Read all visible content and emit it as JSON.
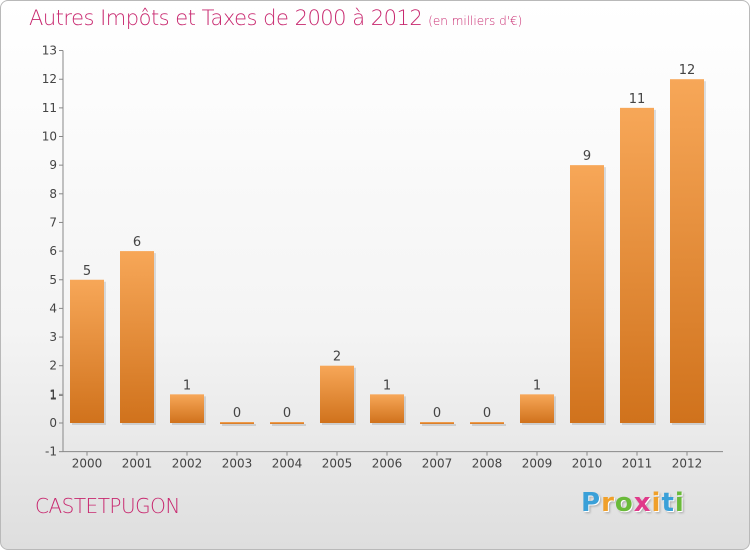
{
  "title": "Autres Impôts et Taxes de 2000 à 2012",
  "title_unit": "(en milliers d'€)",
  "place": "CASTETPUGON",
  "logo": {
    "letters": [
      "P",
      "r",
      "o",
      "x",
      "i",
      "t",
      "i"
    ],
    "colors": [
      "#3aa0d8",
      "#f0a02a",
      "#6aba3a",
      "#e03a8a",
      "#f0a02a",
      "#3aa0d8",
      "#6aba3a"
    ]
  },
  "colors": {
    "accent": "#c8286f",
    "bar_light": "#f7a758",
    "bar_dark": "#d0721c",
    "axis": "#888888"
  },
  "chart_data": {
    "type": "bar",
    "categories": [
      "2000",
      "2001",
      "2002",
      "2003",
      "2004",
      "2005",
      "2006",
      "2007",
      "2008",
      "2009",
      "2010",
      "2011",
      "2012"
    ],
    "values": [
      5,
      6,
      1,
      0,
      0,
      2,
      1,
      0,
      0,
      1,
      9,
      11,
      12
    ],
    "value_labels": [
      "5",
      "6",
      "1",
      "0",
      "0",
      "2",
      "1",
      "0",
      "0",
      "1",
      "9",
      "11",
      "12"
    ],
    "yticks": [
      "-1",
      "0",
      "1",
      "1",
      "2",
      "3",
      "4",
      "5",
      "6",
      "7",
      "8",
      "9",
      "10",
      "11",
      "12",
      "13"
    ],
    "ytick_values": [
      -1,
      0,
      0.96,
      1,
      2,
      3,
      4,
      5,
      6,
      7,
      8,
      9,
      10,
      11,
      12,
      13
    ],
    "ylim": [
      -1,
      13
    ],
    "grid": false,
    "legend": "none"
  }
}
